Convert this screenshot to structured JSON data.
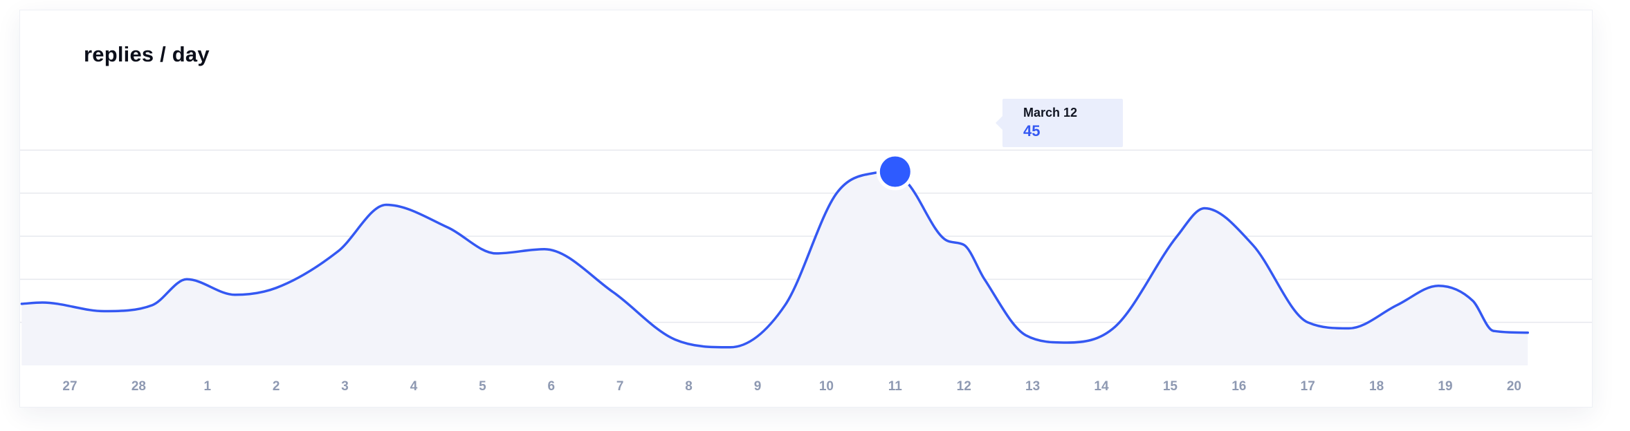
{
  "chart_data": {
    "type": "area",
    "title": "replies / day",
    "xlabel": "",
    "ylabel": "",
    "x": [
      "27",
      "28",
      "1",
      "2",
      "3",
      "4",
      "5",
      "6",
      "7",
      "8",
      "9",
      "10",
      "11",
      "12",
      "13",
      "14",
      "15",
      "16",
      "17",
      "18",
      "19",
      "20"
    ],
    "ylim": [
      0,
      60
    ],
    "grid": true,
    "series": [
      {
        "points": [
          [
            -0.7,
            14.3
          ],
          [
            -0.4,
            14.6
          ],
          [
            0.5,
            12.6
          ],
          [
            1.2,
            14.0
          ],
          [
            1.7,
            20.0
          ],
          [
            2.4,
            16.4
          ],
          [
            3.0,
            18.0
          ],
          [
            3.9,
            26.5
          ],
          [
            4.6,
            37.3
          ],
          [
            5.5,
            32.0
          ],
          [
            6.2,
            26.0
          ],
          [
            6.9,
            27.0
          ],
          [
            7.9,
            17.0
          ],
          [
            8.8,
            6.0
          ],
          [
            9.6,
            4.2
          ],
          [
            10.4,
            14.0
          ],
          [
            11.15,
            40.0
          ],
          [
            11.7,
            44.7
          ],
          [
            12.0,
            45.0
          ],
          [
            12.2,
            42.0
          ],
          [
            12.75,
            29.0
          ],
          [
            13.0,
            28.0
          ],
          [
            13.3,
            20.0
          ],
          [
            13.9,
            7.0
          ],
          [
            14.5,
            5.3
          ],
          [
            15.2,
            9.0
          ],
          [
            16.1,
            30.0
          ],
          [
            16.5,
            36.5
          ],
          [
            17.2,
            28.0
          ],
          [
            18.0,
            10.0
          ],
          [
            18.6,
            8.6
          ],
          [
            19.3,
            14.0
          ],
          [
            19.9,
            18.5
          ],
          [
            20.4,
            15.0
          ],
          [
            20.7,
            8.0
          ],
          [
            21.2,
            7.6
          ]
        ]
      }
    ],
    "highlight": {
      "x": 12,
      "y": 45,
      "label": "March 12",
      "value": "45"
    },
    "colors": {
      "line": "#3458f2",
      "fill": "#f3f4fa",
      "grid": "#e6e8ee",
      "tick": "#8e99b2",
      "marker": "#2e5bff"
    }
  }
}
